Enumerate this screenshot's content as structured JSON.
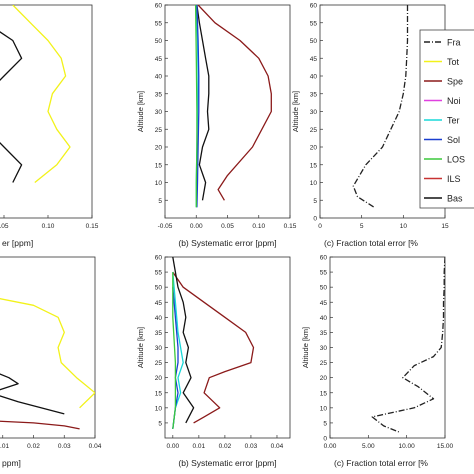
{
  "colors": {
    "total": "#f2f21a",
    "spectroscopic": "#8b1a1a",
    "noise": "#e040e0",
    "temperature": "#18d8d8",
    "solar": "#1a3fd0",
    "los": "#3cc83c",
    "ils": "#c83232",
    "baseline": "#111111"
  },
  "legend": {
    "entries": [
      {
        "label": "Fra",
        "color": "#222222",
        "dash": "6,2,1,2"
      },
      {
        "label": "Tot",
        "color": "#f2f21a"
      },
      {
        "label": "Spe",
        "color": "#8b1a1a"
      },
      {
        "label": "Noi",
        "color": "#e040e0"
      },
      {
        "label": "Ter",
        "color": "#18d8d8"
      },
      {
        "label": "Sol",
        "color": "#1a3fd0"
      },
      {
        "label": "LOS",
        "color": "#3cc83c"
      },
      {
        "label": "ILS",
        "color": "#c83232"
      },
      {
        "label": "Bas",
        "color": "#111111"
      }
    ]
  },
  "chart_data": [
    {
      "type": "line",
      "panel": "top-a",
      "xlabel": "er [ppm]",
      "ylabel": "",
      "xlim": [
        0,
        0.15
      ],
      "ylim": [
        0,
        60
      ],
      "xticks": [
        ".05",
        "0.10",
        "0.15"
      ],
      "yticks": [],
      "series": [
        {
          "color": "#f2f21a",
          "x": [
            0.06,
            0.08,
            0.1,
            0.115,
            0.12,
            0.105,
            0.1,
            0.11,
            0.125,
            0.11,
            0.085
          ],
          "y": [
            60,
            55,
            50,
            45,
            40,
            35,
            30,
            25,
            20,
            15,
            10
          ]
        },
        {
          "color": "#111111",
          "x": [
            0.0,
            0.03,
            0.06,
            0.07,
            0.05,
            0.03,
            0.04,
            0.03,
            0.05,
            0.07,
            0.06
          ],
          "y": [
            60,
            55,
            50,
            45,
            40,
            35,
            30,
            25,
            20,
            15,
            10
          ]
        },
        {
          "color": "#e040e0",
          "x": [
            0.0,
            0.01,
            0.0
          ],
          "y": [
            44,
            41,
            38
          ]
        }
      ]
    },
    {
      "type": "line",
      "panel": "top-b",
      "xlabel": "(b) Systematic error [ppm]",
      "ylabel": "Altitude [km]",
      "xlim": [
        -0.05,
        0.15
      ],
      "ylim": [
        0,
        60
      ],
      "xticks": [
        "-0.05",
        "0.00",
        "0.05",
        "0.10",
        "0.15"
      ],
      "yticks": [
        "5",
        "10",
        "15",
        "20",
        "25",
        "30",
        "35",
        "40",
        "45",
        "50",
        "55",
        "60"
      ],
      "series": [
        {
          "color": "#8b1a1a",
          "x": [
            0.003,
            0.03,
            0.07,
            0.1,
            0.115,
            0.12,
            0.12,
            0.09,
            0.05,
            0.035,
            0.045
          ],
          "y": [
            60,
            55,
            50,
            45,
            40,
            35,
            30,
            20,
            12,
            8,
            5
          ]
        },
        {
          "color": "#111111",
          "x": [
            0.001,
            0.005,
            0.01,
            0.015,
            0.02,
            0.02,
            0.018,
            0.02,
            0.01,
            0.005,
            0.015,
            0.01
          ],
          "y": [
            60,
            55,
            50,
            45,
            40,
            35,
            30,
            25,
            20,
            15,
            10,
            5
          ]
        },
        {
          "color": "#18d8d8",
          "x": [
            0.0,
            0.002,
            0.003,
            0.002,
            0.001,
            0.0,
            0.0
          ],
          "y": [
            60,
            50,
            40,
            30,
            20,
            10,
            3
          ]
        },
        {
          "color": "#1a3fd0",
          "x": [
            0.001,
            0.003,
            0.004,
            0.004,
            0.003,
            0.002,
            0.001
          ],
          "y": [
            60,
            50,
            40,
            30,
            20,
            10,
            3
          ]
        },
        {
          "color": "#3cc83c",
          "x": [
            -0.001,
            0.0,
            0.001,
            0.001,
            0.0,
            0.0
          ],
          "y": [
            60,
            45,
            30,
            20,
            10,
            3
          ]
        }
      ]
    },
    {
      "type": "line",
      "panel": "top-c",
      "xlabel": "(c) Fraction total error [%",
      "ylabel": "Altitude [km]",
      "xlim": [
        0,
        15
      ],
      "ylim": [
        0,
        60
      ],
      "xticks": [
        "0",
        "5",
        "10",
        "15"
      ],
      "yticks": [
        "0",
        "5",
        "10",
        "15",
        "20",
        "25",
        "30",
        "35",
        "40",
        "45",
        "50",
        "55",
        "60"
      ],
      "series": [
        {
          "color": "#222222",
          "dash": "6,2,1,2",
          "x": [
            10.5,
            10.5,
            10.5,
            10.4,
            10.3,
            10.0,
            9.5,
            8.5,
            7.5,
            5.5,
            4.0,
            4.5,
            6.5
          ],
          "y": [
            60,
            55,
            50,
            45,
            40,
            35,
            30,
            25,
            20,
            15,
            9,
            6,
            3
          ]
        }
      ]
    },
    {
      "type": "line",
      "panel": "bottom-a",
      "xlabel": "ppm]",
      "ylabel": "",
      "xlim": [
        0,
        0.04
      ],
      "ylim": [
        0,
        60
      ],
      "xticks": [
        "0.01",
        "0.02",
        "0.03",
        "0.04"
      ],
      "yticks": [],
      "series": [
        {
          "color": "#f2f21a",
          "x": [
            0.0,
            0.02,
            0.028,
            0.03,
            0.028,
            0.029,
            0.034,
            0.04,
            0.035
          ],
          "y": [
            48,
            44,
            40,
            35,
            30,
            25,
            20,
            15,
            10
          ]
        },
        {
          "color": "#111111",
          "x": [
            0.0,
            0.006,
            0.0,
            0.012,
            0.015,
            0.006,
            0.015,
            0.03
          ],
          "y": [
            35,
            30,
            25,
            20,
            18,
            15,
            12,
            8
          ]
        },
        {
          "color": "#8b1a1a",
          "x": [
            0.0,
            0.02,
            0.03,
            0.035
          ],
          "y": [
            6,
            5,
            4,
            3
          ]
        }
      ]
    },
    {
      "type": "line",
      "panel": "bottom-b",
      "xlabel": "(b) Systematic error [ppm]",
      "ylabel": "Altitude [km]",
      "xlim": [
        -0.003,
        0.045
      ],
      "ylim": [
        0,
        60
      ],
      "xticks": [
        "0.00",
        "0.01",
        "0.02",
        "0.03",
        "0.04"
      ],
      "yticks": [
        "5",
        "10",
        "15",
        "20",
        "25",
        "30",
        "35",
        "40",
        "45",
        "50",
        "55",
        "60"
      ],
      "series": [
        {
          "color": "#8b1a1a",
          "x": [
            0.0,
            0.004,
            0.012,
            0.02,
            0.028,
            0.031,
            0.03,
            0.02,
            0.014,
            0.012,
            0.018,
            0.012,
            0.008
          ],
          "y": [
            55,
            50,
            45,
            40,
            35,
            30,
            25,
            22,
            20,
            15,
            10,
            7,
            5
          ]
        },
        {
          "color": "#111111",
          "x": [
            0.0,
            0.002,
            0.004,
            0.005,
            0.004,
            0.006,
            0.005,
            0.007,
            0.004,
            0.008,
            0.005
          ],
          "y": [
            60,
            50,
            45,
            40,
            35,
            30,
            25,
            20,
            15,
            10,
            5
          ]
        },
        {
          "color": "#18d8d8",
          "x": [
            0.0,
            0.001,
            0.002,
            0.003,
            0.004,
            0.002,
            0.003,
            0.001,
            0.0
          ],
          "y": [
            55,
            45,
            35,
            30,
            25,
            20,
            15,
            10,
            3
          ]
        },
        {
          "color": "#1a3fd0",
          "x": [
            0.0,
            0.001,
            0.002,
            0.002,
            0.001,
            0.002,
            0.001,
            0.0
          ],
          "y": [
            50,
            40,
            30,
            25,
            20,
            15,
            10,
            3
          ]
        },
        {
          "color": "#3cc83c",
          "x": [
            0.0,
            0.0,
            0.001,
            0.001,
            0.0
          ],
          "y": [
            55,
            40,
            25,
            10,
            3
          ]
        }
      ]
    },
    {
      "type": "line",
      "panel": "bottom-c",
      "xlabel": "(c) Fraction total error [%",
      "ylabel": "Altitude [km]",
      "xlim": [
        0,
        15
      ],
      "ylim": [
        0,
        60
      ],
      "xticks": [
        "0.00",
        "5.00",
        "10.00",
        "15.00"
      ],
      "yticks": [
        "0",
        "5",
        "10",
        "15",
        "20",
        "25",
        "30",
        "35",
        "40",
        "45",
        "50",
        "55",
        "60"
      ],
      "series": [
        {
          "color": "#222222",
          "dash": "6,2,1,2",
          "x": [
            15.0,
            14.9,
            14.9,
            14.8,
            14.8,
            14.7,
            14.5,
            13.5,
            11.0,
            9.5,
            11.5,
            13.5,
            11.0,
            5.5,
            7.0,
            9.0
          ],
          "y": [
            60,
            55,
            50,
            45,
            40,
            35,
            30,
            27,
            24,
            20,
            17,
            13,
            10,
            7,
            4,
            2
          ]
        }
      ]
    }
  ]
}
